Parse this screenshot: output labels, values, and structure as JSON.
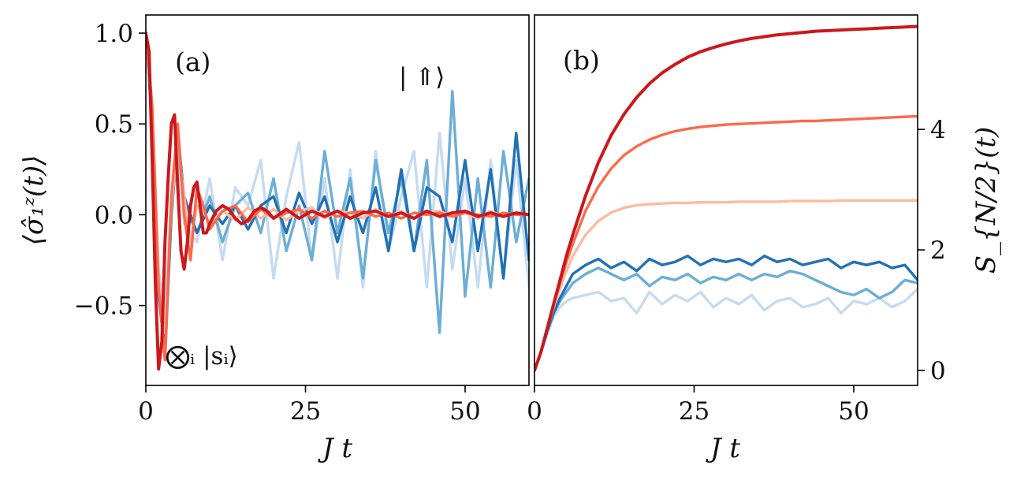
{
  "chart_data": [
    {
      "type": "line",
      "panel_label": "(a)",
      "xlabel": "J t",
      "ylabel": "⟨σ̂₁ᶻ(t)⟩",
      "xlim": [
        0,
        60
      ],
      "ylim": [
        -0.94,
        1.1
      ],
      "xticks": [
        "0",
        "25",
        "50"
      ],
      "yticks": [
        "1.0",
        "0.5",
        "0.0",
        "−0.5"
      ],
      "annotations": [
        "| ⇑⟩",
        "⨂ᵢ |sᵢ⟩"
      ],
      "series": [
        {
          "color": "#c6dbef",
          "x": [
            0,
            1,
            2,
            3,
            4,
            5,
            6,
            8,
            10,
            12,
            14,
            16,
            18,
            20,
            22,
            24,
            26,
            28,
            30,
            32,
            34,
            36,
            38,
            40,
            42,
            44,
            46,
            48,
            50,
            52,
            54,
            56,
            58,
            60
          ],
          "y": [
            1.0,
            0.6,
            -0.3,
            -0.55,
            0.1,
            0.3,
            -0.05,
            -0.15,
            0.2,
            -0.25,
            0.15,
            0.05,
            0.3,
            -0.35,
            0.1,
            0.4,
            -0.25,
            0.2,
            -0.35,
            0.25,
            -0.4,
            0.35,
            -0.2,
            0.1,
            0.35,
            -0.4,
            0.45,
            -0.3,
            0.2,
            -0.4,
            0.3,
            -0.35,
            0.3,
            -0.4
          ]
        },
        {
          "color": "#6baed6",
          "x": [
            0,
            1,
            2,
            3,
            4,
            5,
            6,
            8,
            10,
            12,
            14,
            16,
            18,
            20,
            22,
            24,
            26,
            28,
            30,
            32,
            34,
            36,
            38,
            40,
            42,
            44,
            46,
            48,
            50,
            52,
            54,
            56,
            58,
            60
          ],
          "y": [
            1.0,
            0.55,
            -0.4,
            -0.8,
            0.0,
            0.4,
            0.05,
            -0.1,
            0.1,
            -0.15,
            0.05,
            0.12,
            -0.1,
            0.2,
            -0.2,
            0.05,
            -0.25,
            0.35,
            -0.1,
            0.2,
            -0.35,
            0.3,
            -0.1,
            0.2,
            -0.2,
            0.3,
            -0.65,
            0.68,
            -0.45,
            0.2,
            -0.4,
            0.35,
            -0.15,
            0.2
          ]
        },
        {
          "color": "#2171b5",
          "x": [
            0,
            1,
            2,
            3,
            4,
            5,
            6,
            8,
            10,
            12,
            14,
            16,
            18,
            20,
            22,
            24,
            26,
            28,
            30,
            32,
            34,
            36,
            38,
            40,
            42,
            44,
            46,
            48,
            50,
            52,
            54,
            56,
            58,
            60
          ],
          "y": [
            1.0,
            0.5,
            -0.45,
            -0.75,
            0.0,
            0.45,
            0.1,
            -0.1,
            0.05,
            -0.05,
            0.05,
            -0.08,
            0.05,
            0.1,
            -0.1,
            0.12,
            -0.05,
            0.1,
            -0.15,
            0.1,
            -0.1,
            0.15,
            -0.2,
            0.25,
            -0.2,
            0.15,
            0.1,
            -0.15,
            0.3,
            -0.2,
            0.25,
            -0.35,
            0.45,
            -0.25
          ]
        },
        {
          "color": "#fcbba1",
          "x": [
            0,
            1,
            2,
            3,
            4,
            5,
            6,
            7,
            8,
            9,
            10,
            12,
            14,
            16,
            18,
            20,
            22,
            24,
            26,
            28,
            30,
            32,
            34,
            36,
            38,
            40,
            42,
            44,
            46,
            48,
            50,
            52,
            54,
            56,
            58,
            60
          ],
          "y": [
            1.0,
            0.55,
            -0.35,
            -0.65,
            0.05,
            0.4,
            0.1,
            -0.15,
            0.05,
            0.02,
            -0.05,
            0.02,
            -0.03,
            0.04,
            -0.02,
            0.03,
            -0.03,
            0.02,
            0.04,
            -0.02,
            0.02,
            0.01,
            -0.02,
            0.03,
            -0.01,
            0.02,
            -0.02,
            0.01,
            0.02,
            -0.01,
            0.01,
            -0.02,
            0.02,
            -0.01,
            0.01,
            0.0
          ]
        },
        {
          "color": "#fb6a4a",
          "x": [
            0,
            1,
            2,
            3,
            4,
            5,
            6,
            7,
            8,
            9,
            10,
            12,
            14,
            16,
            18,
            20,
            22,
            24,
            26,
            28,
            30,
            32,
            34,
            36,
            38,
            40,
            42,
            44,
            46,
            48,
            50,
            52,
            54,
            56,
            58,
            60
          ],
          "y": [
            1.0,
            0.6,
            -0.4,
            -0.8,
            0.1,
            0.5,
            0.0,
            -0.25,
            0.15,
            0.05,
            -0.08,
            0.02,
            0.05,
            -0.04,
            0.03,
            -0.02,
            0.01,
            0.03,
            -0.02,
            0.02,
            -0.01,
            0.01,
            0.02,
            -0.01,
            0.01,
            -0.02,
            0.01,
            0.0,
            0.01,
            -0.01,
            0.01,
            0.0,
            -0.01,
            0.01,
            0.0,
            0.0
          ]
        },
        {
          "color": "#cb181d",
          "x": [
            0,
            0.5,
            1,
            1.5,
            2,
            2.5,
            3,
            3.5,
            4,
            4.5,
            5,
            5.5,
            6,
            6.5,
            7,
            7.5,
            8,
            8.5,
            9,
            9.5,
            10,
            11,
            12,
            13,
            14,
            15,
            16,
            17,
            18,
            19,
            20,
            22,
            24,
            26,
            28,
            30,
            32,
            34,
            36,
            38,
            40,
            42,
            44,
            46,
            48,
            50,
            52,
            54,
            56,
            58,
            60
          ],
          "y": [
            1.0,
            0.9,
            0.3,
            -0.4,
            -0.85,
            -0.7,
            -0.15,
            0.2,
            0.5,
            0.55,
            0.15,
            -0.2,
            -0.3,
            -0.15,
            0.05,
            0.15,
            0.18,
            0.05,
            -0.1,
            -0.1,
            -0.05,
            0.02,
            0.05,
            0.03,
            -0.02,
            -0.05,
            -0.03,
            0.02,
            0.04,
            0.02,
            -0.02,
            0.03,
            -0.02,
            0.02,
            -0.01,
            0.02,
            -0.02,
            0.01,
            0.02,
            -0.01,
            0.01,
            -0.02,
            0.02,
            -0.01,
            0.01,
            0.02,
            -0.01,
            0.01,
            -0.01,
            0.01,
            0.0
          ]
        }
      ]
    },
    {
      "type": "line",
      "panel_label": "(b)",
      "xlabel": "J t",
      "ylabel": "S_{N/2}(t)",
      "xlim": [
        0,
        60
      ],
      "ylim": [
        -0.25,
        5.9
      ],
      "xticks": [
        "0",
        "25",
        "50"
      ],
      "yticks": [
        "4",
        "2",
        "0"
      ],
      "series": [
        {
          "color": "#c6dbef",
          "x": [
            0,
            1,
            2,
            3,
            4,
            5,
            6,
            8,
            10,
            12,
            14,
            16,
            18,
            20,
            22,
            24,
            26,
            28,
            30,
            32,
            34,
            36,
            38,
            40,
            42,
            44,
            46,
            48,
            50,
            52,
            54,
            56,
            58,
            60
          ],
          "y": [
            0.0,
            0.3,
            0.6,
            0.9,
            1.05,
            1.15,
            1.2,
            1.25,
            1.3,
            1.15,
            1.2,
            0.95,
            1.3,
            1.1,
            1.25,
            1.15,
            1.3,
            1.05,
            1.2,
            1.1,
            1.25,
            1.0,
            1.15,
            1.2,
            1.05,
            1.1,
            1.2,
            0.95,
            1.15,
            1.1,
            1.2,
            1.05,
            1.15,
            1.35
          ]
        },
        {
          "color": "#6baed6",
          "x": [
            0,
            1,
            2,
            3,
            4,
            5,
            6,
            8,
            10,
            12,
            14,
            16,
            18,
            20,
            22,
            24,
            26,
            28,
            30,
            32,
            34,
            36,
            38,
            40,
            42,
            44,
            46,
            48,
            50,
            52,
            54,
            56,
            58,
            60
          ],
          "y": [
            0.0,
            0.3,
            0.65,
            0.95,
            1.15,
            1.3,
            1.45,
            1.6,
            1.7,
            1.6,
            1.5,
            1.6,
            1.4,
            1.55,
            1.5,
            1.6,
            1.45,
            1.55,
            1.5,
            1.6,
            1.5,
            1.6,
            1.55,
            1.65,
            1.6,
            1.5,
            1.4,
            1.3,
            1.25,
            1.35,
            1.2,
            1.3,
            1.5,
            1.45
          ]
        },
        {
          "color": "#2171b5",
          "x": [
            0,
            1,
            2,
            3,
            4,
            5,
            6,
            8,
            10,
            12,
            14,
            16,
            18,
            20,
            22,
            24,
            26,
            28,
            30,
            32,
            34,
            36,
            38,
            40,
            42,
            44,
            46,
            48,
            50,
            52,
            54,
            56,
            58,
            60
          ],
          "y": [
            0.0,
            0.3,
            0.65,
            0.95,
            1.2,
            1.4,
            1.6,
            1.75,
            1.85,
            1.7,
            1.8,
            1.65,
            1.85,
            1.75,
            1.8,
            1.9,
            1.75,
            1.85,
            1.8,
            1.85,
            1.75,
            1.9,
            1.8,
            1.85,
            1.75,
            1.8,
            1.85,
            1.7,
            1.8,
            1.75,
            1.8,
            1.7,
            1.75,
            1.5
          ]
        },
        {
          "color": "#fcbba1",
          "x": [
            0,
            1,
            2,
            3,
            4,
            5,
            6,
            8,
            10,
            12,
            14,
            16,
            18,
            20,
            22,
            24,
            26,
            28,
            30,
            32,
            34,
            36,
            38,
            40,
            42,
            44,
            46,
            48,
            50,
            52,
            54,
            56,
            58,
            60
          ],
          "y": [
            0.0,
            0.3,
            0.7,
            1.05,
            1.35,
            1.65,
            1.9,
            2.25,
            2.48,
            2.62,
            2.7,
            2.74,
            2.76,
            2.77,
            2.78,
            2.78,
            2.79,
            2.79,
            2.79,
            2.8,
            2.8,
            2.8,
            2.8,
            2.81,
            2.81,
            2.81,
            2.81,
            2.82,
            2.82,
            2.82,
            2.82,
            2.82,
            2.82,
            2.82
          ]
        },
        {
          "color": "#fb6a4a",
          "x": [
            0,
            1,
            2,
            3,
            4,
            5,
            6,
            8,
            10,
            12,
            14,
            16,
            18,
            20,
            22,
            24,
            26,
            28,
            30,
            32,
            34,
            36,
            38,
            40,
            42,
            44,
            46,
            48,
            50,
            52,
            54,
            56,
            58,
            60
          ],
          "y": [
            0.0,
            0.3,
            0.7,
            1.1,
            1.45,
            1.8,
            2.1,
            2.65,
            3.05,
            3.35,
            3.57,
            3.72,
            3.83,
            3.91,
            3.97,
            4.01,
            4.04,
            4.06,
            4.08,
            4.09,
            4.1,
            4.11,
            4.12,
            4.13,
            4.14,
            4.14,
            4.15,
            4.16,
            4.17,
            4.18,
            4.19,
            4.2,
            4.21,
            4.22
          ]
        },
        {
          "color": "#cb181d",
          "x": [
            0,
            1,
            2,
            3,
            4,
            5,
            6,
            8,
            10,
            12,
            14,
            16,
            18,
            20,
            22,
            24,
            26,
            28,
            30,
            32,
            34,
            36,
            38,
            40,
            42,
            44,
            46,
            48,
            50,
            52,
            54,
            56,
            58,
            60
          ],
          "y": [
            0.0,
            0.3,
            0.7,
            1.1,
            1.5,
            1.9,
            2.25,
            2.9,
            3.45,
            3.9,
            4.25,
            4.53,
            4.76,
            4.94,
            5.08,
            5.2,
            5.29,
            5.36,
            5.42,
            5.47,
            5.51,
            5.54,
            5.57,
            5.59,
            5.61,
            5.63,
            5.64,
            5.65,
            5.66,
            5.67,
            5.68,
            5.69,
            5.7,
            5.71
          ]
        }
      ]
    }
  ]
}
